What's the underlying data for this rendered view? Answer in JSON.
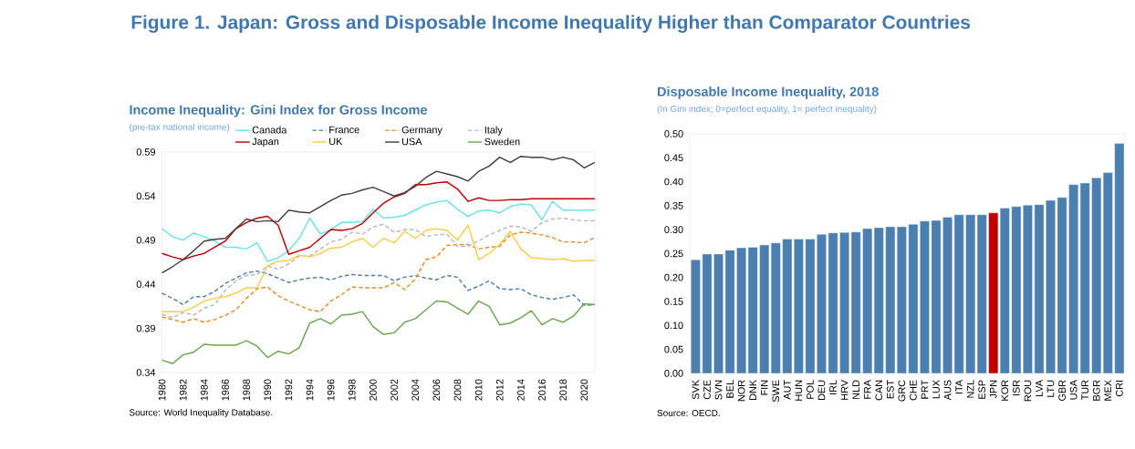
{
  "chart_data": [
    {
      "type": "other",
      "title": "Figure 1. Japan: Gross and Disposable Income Inequality Higher than Comparator Countries"
    },
    {
      "type": "line",
      "title": "Income Inequality: Gini Index for Gross Income",
      "subtitle": "(pre-tax national income)",
      "annotations": [
        "Source: World Inequality Database."
      ],
      "x": [
        1980,
        1981,
        1982,
        1983,
        1984,
        1985,
        1986,
        1987,
        1988,
        1989,
        1990,
        1991,
        1992,
        1993,
        1994,
        1995,
        1996,
        1997,
        1998,
        1999,
        2000,
        2001,
        2002,
        2003,
        2004,
        2005,
        2006,
        2007,
        2008,
        2009,
        2010,
        2011,
        2012,
        2013,
        2014,
        2015,
        2016,
        2017,
        2018,
        2019,
        2020,
        2021
      ],
      "xlim": [
        1980,
        2021
      ],
      "xticks": [
        1980,
        1982,
        1984,
        1986,
        1988,
        1990,
        1992,
        1994,
        1996,
        1998,
        2000,
        2002,
        2004,
        2006,
        2008,
        2010,
        2012,
        2014,
        2016,
        2018,
        2020
      ],
      "ylim": [
        0.34,
        0.59
      ],
      "yticks": [
        0.34,
        0.39,
        0.44,
        0.49,
        0.54,
        0.59
      ],
      "legend": "top",
      "series": [
        {
          "name": "Canada",
          "color": "#66e4f0",
          "values": [
            0.503,
            0.494,
            0.49,
            0.498,
            0.494,
            0.489,
            0.482,
            0.482,
            0.48,
            0.487,
            0.466,
            0.47,
            0.478,
            0.492,
            0.515,
            0.497,
            0.502,
            0.51,
            0.51,
            0.511,
            0.525,
            0.515,
            0.516,
            0.518,
            0.524,
            0.53,
            0.533,
            0.535,
            0.525,
            0.517,
            0.523,
            0.524,
            0.521,
            0.528,
            0.531,
            0.53,
            0.513,
            0.534,
            0.524,
            0.524,
            0.524,
            0.524
          ]
        },
        {
          "name": "France",
          "color": "#4a7fb0",
          "line_style": "dashed",
          "values": [
            0.43,
            0.424,
            0.417,
            0.426,
            0.426,
            0.432,
            0.441,
            0.447,
            0.453,
            0.455,
            0.452,
            0.447,
            0.442,
            0.445,
            0.447,
            0.448,
            0.445,
            0.449,
            0.451,
            0.45,
            0.45,
            0.45,
            0.444,
            0.448,
            0.45,
            0.447,
            0.445,
            0.45,
            0.448,
            0.433,
            0.438,
            0.444,
            0.435,
            0.434,
            0.435,
            0.428,
            0.425,
            0.423,
            0.425,
            0.428,
            0.416,
            0.417
          ]
        },
        {
          "name": "Germany",
          "color": "#f08a1c",
          "line_style": "dashed",
          "values": [
            0.403,
            0.4,
            0.397,
            0.401,
            0.397,
            0.4,
            0.405,
            0.411,
            0.424,
            0.435,
            0.437,
            0.427,
            0.421,
            0.416,
            0.411,
            0.409,
            0.421,
            0.428,
            0.437,
            0.436,
            0.436,
            0.436,
            0.442,
            0.434,
            0.446,
            0.468,
            0.471,
            0.484,
            0.485,
            0.485,
            0.48,
            0.482,
            0.483,
            0.496,
            0.499,
            0.498,
            0.496,
            0.493,
            0.488,
            0.488,
            0.487,
            0.493
          ]
        },
        {
          "name": "Italy",
          "color": "#b8b8b8",
          "line_style": "dashed",
          "values": [
            0.406,
            0.402,
            0.408,
            0.405,
            0.413,
            0.417,
            0.433,
            0.444,
            0.45,
            0.451,
            0.461,
            0.457,
            0.463,
            0.472,
            0.472,
            0.48,
            0.488,
            0.491,
            0.499,
            0.497,
            0.505,
            0.508,
            0.499,
            0.502,
            0.502,
            0.494,
            0.496,
            0.497,
            0.483,
            0.483,
            0.489,
            0.496,
            0.501,
            0.506,
            0.505,
            0.5,
            0.51,
            0.514,
            0.515,
            0.513,
            0.512,
            0.512
          ]
        },
        {
          "name": "Japan",
          "color": "#c00000",
          "values": [
            0.475,
            0.471,
            0.468,
            0.472,
            0.475,
            0.482,
            0.489,
            0.503,
            0.51,
            0.515,
            0.517,
            0.507,
            0.474,
            0.478,
            0.482,
            0.492,
            0.502,
            0.501,
            0.503,
            0.509,
            0.521,
            0.532,
            0.539,
            0.543,
            0.553,
            0.553,
            0.555,
            0.556,
            0.548,
            0.534,
            0.538,
            0.535,
            0.535,
            0.536,
            0.536,
            0.537,
            0.537,
            0.537,
            0.537,
            0.537,
            0.537,
            0.537
          ]
        },
        {
          "name": "UK",
          "color": "#ffcc44",
          "values": [
            0.409,
            0.409,
            0.409,
            0.414,
            0.421,
            0.424,
            0.426,
            0.43,
            0.436,
            0.436,
            0.461,
            0.466,
            0.467,
            0.473,
            0.471,
            0.475,
            0.481,
            0.482,
            0.488,
            0.492,
            0.482,
            0.492,
            0.487,
            0.5,
            0.492,
            0.501,
            0.503,
            0.501,
            0.49,
            0.507,
            0.468,
            0.475,
            0.485,
            0.5,
            0.48,
            0.47,
            0.469,
            0.468,
            0.469,
            0.466,
            0.467,
            0.467
          ]
        },
        {
          "name": "USA",
          "color": "#404040",
          "values": [
            0.453,
            0.46,
            0.468,
            0.478,
            0.489,
            0.491,
            0.492,
            0.503,
            0.514,
            0.511,
            0.512,
            0.511,
            0.524,
            0.522,
            0.521,
            0.528,
            0.535,
            0.541,
            0.543,
            0.547,
            0.55,
            0.545,
            0.54,
            0.544,
            0.551,
            0.561,
            0.568,
            0.565,
            0.562,
            0.557,
            0.568,
            0.574,
            0.584,
            0.578,
            0.585,
            0.584,
            0.584,
            0.581,
            0.584,
            0.581,
            0.572,
            0.578
          ]
        },
        {
          "name": "Sweden",
          "color": "#6aa84f",
          "values": [
            0.354,
            0.35,
            0.36,
            0.363,
            0.372,
            0.371,
            0.371,
            0.371,
            0.376,
            0.37,
            0.357,
            0.364,
            0.361,
            0.368,
            0.396,
            0.401,
            0.395,
            0.405,
            0.406,
            0.409,
            0.392,
            0.383,
            0.385,
            0.397,
            0.401,
            0.411,
            0.421,
            0.42,
            0.413,
            0.406,
            0.421,
            0.415,
            0.394,
            0.396,
            0.402,
            0.41,
            0.394,
            0.401,
            0.397,
            0.404,
            0.418,
            0.417
          ]
        }
      ]
    },
    {
      "type": "bar",
      "title": "Disposable Income Inequality, 2018",
      "subtitle": "(In Gini index; 0=perfect equality, 1= perfect inequality)",
      "annotations": [
        "Source: OECD."
      ],
      "categories": [
        "SVK",
        "CZE",
        "SVN",
        "BEL",
        "NOR",
        "DNK",
        "FIN",
        "SWE",
        "AUT",
        "HUN",
        "POL",
        "DEU",
        "IRL",
        "HRV",
        "NLD",
        "FRA",
        "CAN",
        "EST",
        "GRC",
        "CHE",
        "PRT",
        "LUX",
        "AUS",
        "ITA",
        "NZL",
        "ESP",
        "JPN",
        "KOR",
        "ISR",
        "ROU",
        "LVA",
        "LTU",
        "GBR",
        "USA",
        "TUR",
        "BGR",
        "MEX",
        "CRI"
      ],
      "values": [
        0.237,
        0.249,
        0.249,
        0.257,
        0.262,
        0.263,
        0.268,
        0.272,
        0.28,
        0.28,
        0.28,
        0.29,
        0.293,
        0.294,
        0.295,
        0.302,
        0.304,
        0.306,
        0.306,
        0.311,
        0.318,
        0.319,
        0.326,
        0.331,
        0.331,
        0.331,
        0.335,
        0.345,
        0.348,
        0.351,
        0.352,
        0.361,
        0.367,
        0.394,
        0.397,
        0.408,
        0.419,
        0.48
      ],
      "colors": [
        "#4a7fb0",
        "#4a7fb0",
        "#4a7fb0",
        "#4a7fb0",
        "#4a7fb0",
        "#4a7fb0",
        "#4a7fb0",
        "#4a7fb0",
        "#4a7fb0",
        "#4a7fb0",
        "#4a7fb0",
        "#4a7fb0",
        "#4a7fb0",
        "#4a7fb0",
        "#4a7fb0",
        "#4a7fb0",
        "#4a7fb0",
        "#4a7fb0",
        "#4a7fb0",
        "#4a7fb0",
        "#4a7fb0",
        "#4a7fb0",
        "#4a7fb0",
        "#4a7fb0",
        "#4a7fb0",
        "#4a7fb0",
        "#c00000",
        "#4a7fb0",
        "#4a7fb0",
        "#4a7fb0",
        "#4a7fb0",
        "#4a7fb0",
        "#4a7fb0",
        "#4a7fb0",
        "#4a7fb0",
        "#4a7fb0",
        "#4a7fb0",
        "#4a7fb0"
      ],
      "ylim": [
        0,
        0.5
      ],
      "yticks": [
        {
          "value": 0,
          "label": "0.00"
        },
        {
          "value": 0.05,
          "label": "0.05"
        },
        {
          "value": 0.1,
          "label": "0.10"
        },
        {
          "value": 0.15,
          "label": "0.15"
        },
        {
          "value": 0.2,
          "label": "0.20"
        },
        {
          "value": 0.25,
          "label": "0.25"
        },
        {
          "value": 0.3,
          "label": "0.30"
        },
        {
          "value": 0.35,
          "label": "0.35"
        },
        {
          "value": 0.4,
          "label": "0.40"
        },
        {
          "value": 0.45,
          "label": "0.45"
        },
        {
          "value": 0.5,
          "label": "0.50"
        }
      ]
    }
  ]
}
